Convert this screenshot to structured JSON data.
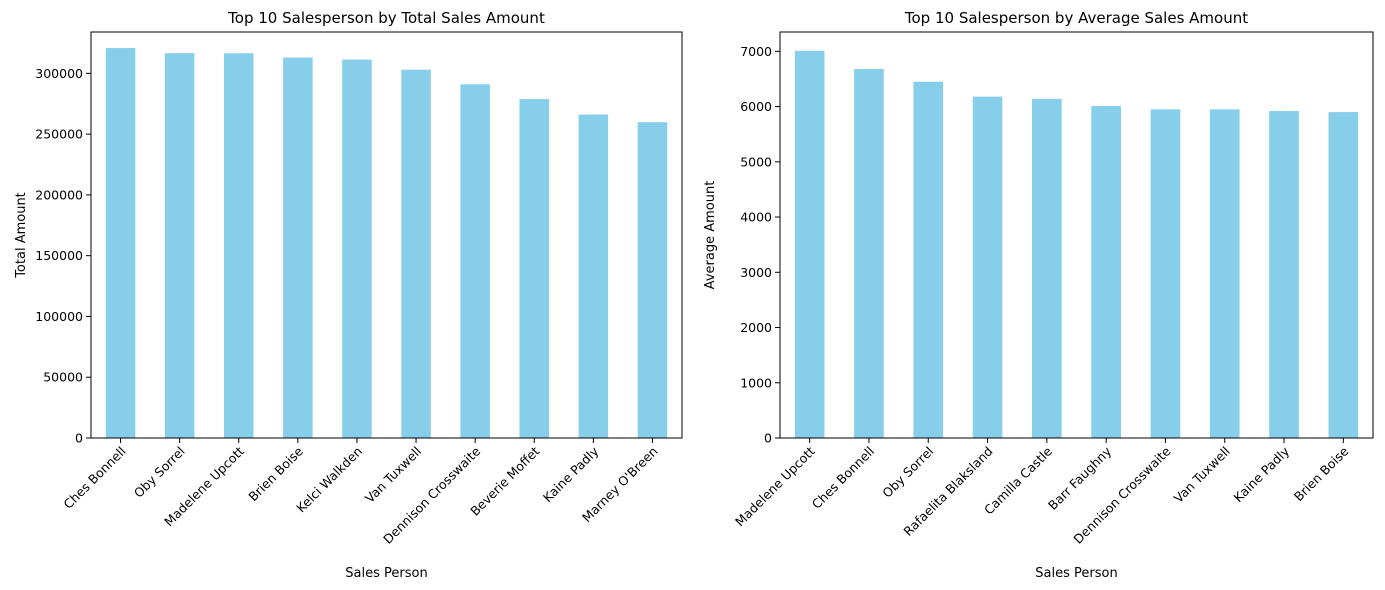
{
  "chart_data": [
    {
      "type": "bar",
      "title": "Top 10 Salesperson by Total Sales Amount",
      "xlabel": "Sales Person",
      "ylabel": "Total Amount",
      "categories": [
        "Ches Bonnell",
        "Oby Sorrel",
        "Madelene Upcott",
        "Brien Boise",
        "Kelci Walkden",
        "Van Tuxwell",
        "Dennison Crosswaite",
        "Beverie Moffet",
        "Kaine Padly",
        "Marney O'Breen"
      ],
      "values": [
        320800,
        316600,
        316500,
        313000,
        311300,
        303000,
        291000,
        278800,
        266100,
        259800
      ],
      "ylim": [
        0,
        334000
      ],
      "yticks": [
        0,
        50000,
        100000,
        150000,
        200000,
        250000,
        300000
      ],
      "ytick_labels": [
        "0",
        "50000",
        "100000",
        "150000",
        "200000",
        "250000",
        "300000"
      ],
      "bar_color": "#87ceeb",
      "grid": false,
      "legend": "none"
    },
    {
      "type": "bar",
      "title": "Top 10 Salesperson by Average Sales Amount",
      "xlabel": "Sales Person",
      "ylabel": "Average Amount",
      "categories": [
        "Madelene Upcott",
        "Ches Bonnell",
        "Oby Sorrel",
        "Rafaelita Blaksland",
        "Camilla Castle",
        "Barr Faughny",
        "Dennison Crosswaite",
        "Van Tuxwell",
        "Kaine Padly",
        "Brien Boise"
      ],
      "values": [
        7010,
        6680,
        6450,
        6180,
        6140,
        6010,
        5950,
        5950,
        5920,
        5900
      ],
      "ylim": [
        0,
        7350
      ],
      "yticks": [
        0,
        1000,
        2000,
        3000,
        4000,
        5000,
        6000,
        7000
      ],
      "ytick_labels": [
        "0",
        "1000",
        "2000",
        "3000",
        "4000",
        "5000",
        "6000",
        "7000"
      ],
      "bar_color": "#87ceeb",
      "grid": false,
      "legend": "none"
    }
  ]
}
